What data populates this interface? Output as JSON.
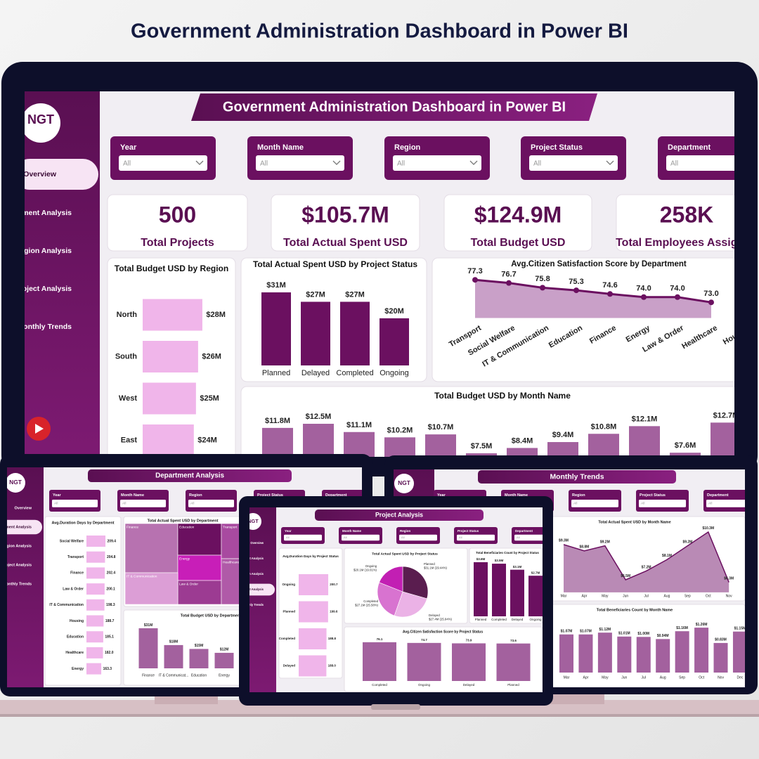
{
  "page_title": "Government Administration Dashboard in Power BI",
  "main": {
    "banner": "Government Administration Dashboard in Power BI",
    "logo": "NGT",
    "nav": [
      "Overview",
      "Department Analysis",
      "Region Analysis",
      "Project Analysis",
      "Monthly Trends"
    ],
    "filters": [
      {
        "label": "Year",
        "value": "All"
      },
      {
        "label": "Month Name",
        "value": "All"
      },
      {
        "label": "Region",
        "value": "All"
      },
      {
        "label": "Project Status",
        "value": "All"
      },
      {
        "label": "Department",
        "value": "All"
      }
    ],
    "kpis": [
      {
        "value": "500",
        "label": "Total Projects"
      },
      {
        "value": "$105.7M",
        "label": "Total Actual Spent USD"
      },
      {
        "value": "$124.9M",
        "label": "Total Budget USD"
      },
      {
        "value": "258K",
        "label": "Total Employees Assigned"
      }
    ]
  },
  "department_screen": {
    "banner": "Department Analysis"
  },
  "project_screen": {
    "banner": "Project Analysis"
  },
  "trends_screen": {
    "banner": "Monthly Trends"
  },
  "chart_data": [
    {
      "type": "hbar",
      "title": "Total Budget USD by Region",
      "categories": [
        "North",
        "South",
        "West",
        "East"
      ],
      "values": [
        28,
        26,
        25,
        24
      ],
      "value_labels": [
        "$28M",
        "$26M",
        "$25M",
        "$24M"
      ],
      "color": "#f0b5ea",
      "xlim": [
        0,
        30
      ]
    },
    {
      "type": "bar",
      "title": "Total Actual Spent USD by Project Status",
      "categories": [
        "Planned",
        "Delayed",
        "Completed",
        "Ongoing"
      ],
      "values": [
        31,
        27,
        27,
        20
      ],
      "value_labels": [
        "$31M",
        "$27M",
        "$27M",
        "$20M"
      ],
      "color": "#6b1060",
      "ylim": [
        0,
        35
      ]
    },
    {
      "type": "area",
      "title": "Avg.Citizen Satisfaction Score by Department",
      "categories": [
        "Transport",
        "Social Welfare",
        "IT & Communication",
        "Education",
        "Finance",
        "Energy",
        "Law & Order",
        "Healthcare",
        "Housing"
      ],
      "values": [
        77.3,
        76.7,
        75.8,
        75.3,
        74.6,
        74.0,
        74.0,
        73.0,
        null
      ],
      "value_labels": [
        "77.3",
        "76.7",
        "75.8",
        "75.3",
        "74.6",
        "74.0",
        "74.0",
        "73.0",
        null
      ],
      "color": "#6b1060",
      "fill": "#c9a0c8",
      "ylim": [
        70,
        78
      ]
    },
    {
      "type": "bar",
      "title": "Total Budget USD by Month Name",
      "categories": [
        null,
        null,
        null,
        null,
        null,
        null,
        null,
        null,
        null,
        null,
        null,
        null
      ],
      "values": [
        11.8,
        12.5,
        11.1,
        10.2,
        10.7,
        7.5,
        8.4,
        9.4,
        10.8,
        12.1,
        7.6,
        12.7
      ],
      "value_labels": [
        "$11.8M",
        "$12.5M",
        "$11.1M",
        "$10.2M",
        "$10.7M",
        "$7.5M",
        "$8.4M",
        "$9.4M",
        "$10.8M",
        "$12.1M",
        "$7.6M",
        "$12.7M"
      ],
      "color": "#a3619e",
      "ylim": [
        0,
        14
      ]
    },
    {
      "type": "hbar",
      "title": "Avg.Duration Days by Department",
      "categories": [
        "Social Welfare",
        "Transport",
        "Finance",
        "Law & Order",
        "IT & Communication",
        "Housing",
        "Education",
        "Healthcare",
        "Energy"
      ],
      "values": [
        209.4,
        204.8,
        202.4,
        200.1,
        198.3,
        188.7,
        185.1,
        182.0,
        163.3
      ],
      "value_labels": [
        "209.4",
        "204.8",
        "202.4",
        "200.1",
        "198.3",
        "188.7",
        "185.1",
        "182.0",
        "163.3"
      ],
      "color": "#f0b5ea",
      "xlim": [
        0,
        220
      ]
    },
    {
      "type": "treemap",
      "title": "Total Actual Spent USD by Department",
      "categories": [
        "Finance",
        "Education",
        "Energy",
        "Law & Order",
        "IT & Communication",
        "Transport",
        "Healthcare"
      ],
      "colors": [
        "#b772b0",
        "#6b1060",
        "#c81eb8",
        "#9c3b92",
        "#dc9ed6",
        "#a84aa0",
        "#b05aa8"
      ]
    },
    {
      "type": "bar",
      "title": "Total Budget USD by Department",
      "categories": [
        "Finance",
        "IT & Communicat...",
        "Education",
        "Energy"
      ],
      "values": [
        31,
        18,
        15,
        12
      ],
      "value_labels": [
        "$31M",
        "$18M",
        "$15M",
        "$12M"
      ],
      "color": "#a3619e",
      "ylim": [
        0,
        35
      ]
    },
    {
      "type": "hbar",
      "title": "Avg.Duration Days by Project Status",
      "categories": [
        "Ongoing",
        "Planned",
        "Completed",
        "Delayed"
      ],
      "values": [
        200.7,
        199.6,
        188.8,
        188.0
      ],
      "value_labels": [
        "200.7",
        "199.6",
        "188.8",
        "188.0"
      ],
      "color": "#f0b5ea",
      "xlim": [
        0,
        210
      ]
    },
    {
      "type": "pie",
      "title": "Total Actual Spent USD by Project Status",
      "categories": [
        "Planned",
        "Delayed",
        "Completed",
        "Ongoing"
      ],
      "values": [
        31.1,
        27.4,
        27.1,
        20.1
      ],
      "value_labels": [
        "$31.1M (29.44%)",
        "$27.4M (25.94%)",
        "$27.1M (25.58%)",
        "$20.1M (19.01%)"
      ],
      "colors": [
        "#5a1d4f",
        "#ebb2e6",
        "#d873d0",
        "#c21fb3"
      ]
    },
    {
      "type": "bar",
      "title": "Total Beneficiaries Count by Project Status",
      "categories": [
        "Planned",
        "Completed",
        "Delayed",
        "Ongoing"
      ],
      "values": [
        3.6,
        3.5,
        3.1,
        2.7
      ],
      "value_labels": [
        "$3.6M",
        "$3.5M",
        "$3.1M",
        "$2.7M"
      ],
      "color": "#6b1060",
      "ylim": [
        0,
        4
      ]
    },
    {
      "type": "bar",
      "title": "Avg.Citizen Satisfaction Score by Project Status",
      "categories": [
        "Completed",
        "Ongoing",
        "Delayed",
        "Planned"
      ],
      "values": [
        76.1,
        74.7,
        73.9,
        73.6
      ],
      "color": "#a3619e",
      "ylim": [
        0,
        80
      ]
    },
    {
      "type": "area",
      "title": "Total Actual Spent USD by Month Name",
      "categories": [
        "Mar",
        "Apr",
        "May",
        "Jun",
        "Jul",
        "Aug",
        "Sep",
        "Oct",
        "Nov",
        "Dec"
      ],
      "values": [
        9.3,
        8.8,
        9.2,
        6.5,
        7.2,
        8.1,
        9.2,
        10.3,
        6.3,
        null
      ],
      "value_labels": [
        "$9.3M",
        "$8.8M",
        "$9.2M",
        "$6.5M",
        "$7.2M",
        "$8.1M",
        "$9.2M",
        "$10.3M",
        "$6.3M",
        null
      ],
      "color": "#6b1060",
      "fill": "#b98ab5",
      "ylim": [
        5.5,
        10.5
      ]
    },
    {
      "type": "bar",
      "title": "Total Beneficiaries Count by Month Name",
      "categories": [
        "Mar",
        "Apr",
        "May",
        "Jun",
        "Jul",
        "Aug",
        "Sep",
        "Oct",
        "Nov",
        "Dec"
      ],
      "values": [
        1.07,
        1.07,
        1.12,
        1.01,
        1.0,
        0.94,
        1.16,
        1.26,
        0.83,
        1.15
      ],
      "value_labels": [
        "$1.07M",
        "$1.07M",
        "$1.12M",
        "$1.01M",
        "$1.00M",
        "$0.94M",
        "$1.16M",
        "$1.26M",
        "$0.83M",
        "$1.15M"
      ],
      "color": "#a3619e",
      "ylim": [
        0,
        1.4
      ]
    }
  ]
}
